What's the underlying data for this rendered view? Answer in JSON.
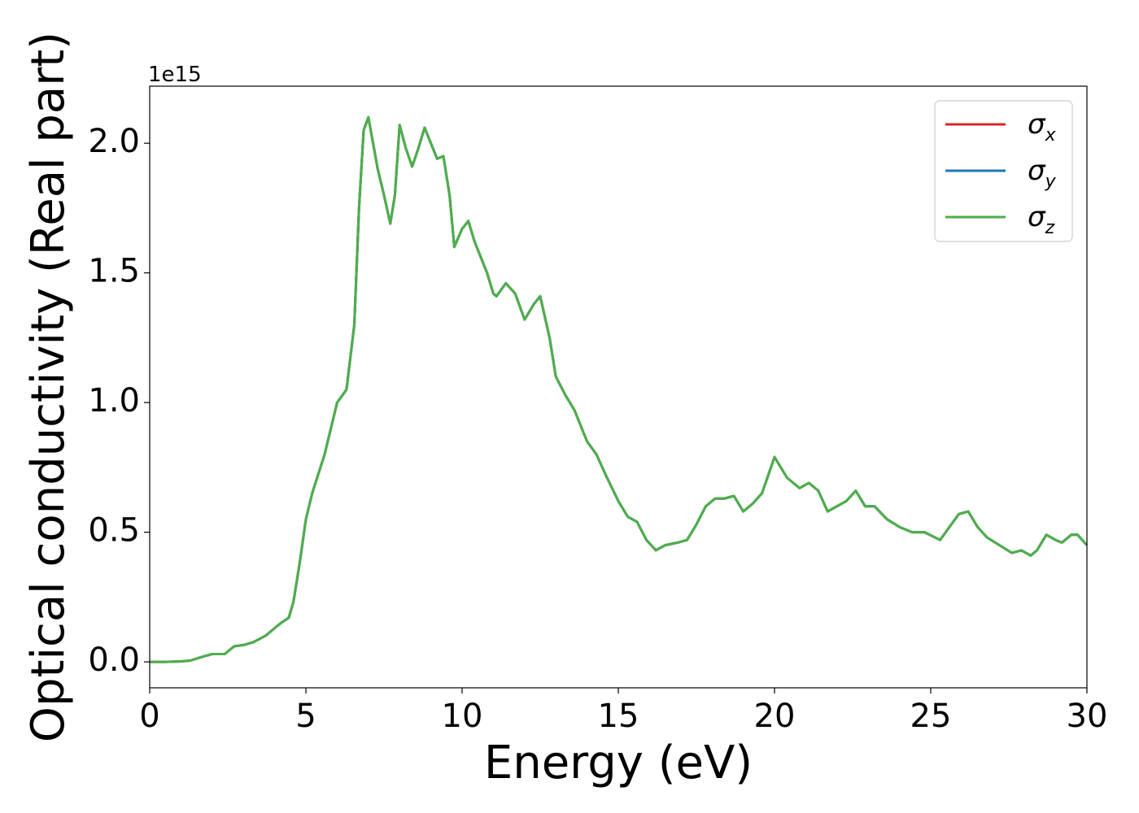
{
  "chart_data": {
    "type": "line",
    "xlabel": "Energy (eV)",
    "ylabel": "Optical conductivity (Real part)",
    "y_offset_label": "1e15",
    "xlim": [
      0,
      30
    ],
    "ylim": [
      -0.1,
      2.22
    ],
    "y_scale_factor": 1000000000000000.0,
    "x_ticks": [
      0,
      5,
      10,
      15,
      20,
      25,
      30
    ],
    "x_tick_labels": [
      "0",
      "5",
      "10",
      "15",
      "20",
      "25",
      "30"
    ],
    "y_ticks": [
      0.0,
      0.5,
      1.0,
      1.5,
      2.0
    ],
    "y_tick_labels": [
      "0.0",
      "0.5",
      "1.0",
      "1.5",
      "2.0"
    ],
    "grid": false,
    "legend_position": "top-right",
    "x": [
      0,
      0.5,
      1.0,
      1.3,
      1.7,
      2.0,
      2.4,
      2.7,
      3.0,
      3.3,
      3.7,
      4.0,
      4.2,
      4.45,
      4.6,
      4.8,
      5.0,
      5.2,
      5.6,
      6.0,
      6.3,
      6.55,
      6.7,
      6.85,
      7.0,
      7.3,
      7.5,
      7.7,
      7.85,
      8.0,
      8.2,
      8.4,
      8.6,
      8.8,
      9.0,
      9.2,
      9.4,
      9.6,
      9.75,
      10.0,
      10.2,
      10.4,
      10.8,
      11.0,
      11.1,
      11.4,
      11.7,
      12.0,
      12.3,
      12.5,
      12.8,
      13.0,
      13.3,
      13.6,
      14.0,
      14.3,
      14.6,
      15.0,
      15.3,
      15.6,
      15.9,
      16.2,
      16.5,
      16.9,
      17.2,
      17.5,
      17.8,
      18.1,
      18.4,
      18.7,
      19.0,
      19.3,
      19.6,
      20.0,
      20.4,
      20.8,
      21.1,
      21.4,
      21.7,
      22.0,
      22.3,
      22.6,
      22.9,
      23.2,
      23.6,
      24.0,
      24.4,
      24.8,
      25.3,
      25.6,
      25.9,
      26.2,
      26.5,
      26.8,
      27.2,
      27.6,
      27.9,
      28.2,
      28.4,
      28.7,
      29.0,
      29.2,
      29.5,
      29.7,
      30.0
    ],
    "series": [
      {
        "name": "σ",
        "subscript": "x",
        "color": "#d62728",
        "values": [
          0.0,
          0.0,
          0.002,
          0.005,
          0.02,
          0.03,
          0.03,
          0.06,
          0.065,
          0.075,
          0.1,
          0.13,
          0.15,
          0.17,
          0.23,
          0.38,
          0.55,
          0.65,
          0.8,
          1.0,
          1.05,
          1.3,
          1.75,
          2.05,
          2.1,
          1.9,
          1.8,
          1.69,
          1.8,
          2.07,
          1.98,
          1.91,
          1.98,
          2.06,
          2.0,
          1.94,
          1.95,
          1.8,
          1.6,
          1.67,
          1.7,
          1.62,
          1.5,
          1.42,
          1.41,
          1.46,
          1.42,
          1.32,
          1.38,
          1.41,
          1.25,
          1.1,
          1.03,
          0.97,
          0.85,
          0.8,
          0.72,
          0.62,
          0.56,
          0.54,
          0.47,
          0.43,
          0.45,
          0.46,
          0.47,
          0.53,
          0.6,
          0.63,
          0.63,
          0.64,
          0.58,
          0.61,
          0.65,
          0.79,
          0.71,
          0.67,
          0.69,
          0.66,
          0.58,
          0.6,
          0.62,
          0.66,
          0.6,
          0.6,
          0.55,
          0.52,
          0.5,
          0.5,
          0.47,
          0.52,
          0.57,
          0.58,
          0.52,
          0.48,
          0.45,
          0.42,
          0.43,
          0.41,
          0.43,
          0.49,
          0.47,
          0.46,
          0.49,
          0.49,
          0.45
        ]
      },
      {
        "name": "σ",
        "subscript": "y",
        "color": "#1f77b4",
        "values": [
          0.0,
          0.0,
          0.002,
          0.005,
          0.02,
          0.03,
          0.03,
          0.06,
          0.065,
          0.075,
          0.1,
          0.13,
          0.15,
          0.17,
          0.23,
          0.38,
          0.55,
          0.65,
          0.8,
          1.0,
          1.05,
          1.3,
          1.75,
          2.05,
          2.1,
          1.9,
          1.8,
          1.69,
          1.8,
          2.07,
          1.98,
          1.91,
          1.98,
          2.06,
          2.0,
          1.94,
          1.95,
          1.8,
          1.6,
          1.67,
          1.7,
          1.62,
          1.5,
          1.42,
          1.41,
          1.46,
          1.42,
          1.32,
          1.38,
          1.41,
          1.25,
          1.1,
          1.03,
          0.97,
          0.85,
          0.8,
          0.72,
          0.62,
          0.56,
          0.54,
          0.47,
          0.43,
          0.45,
          0.46,
          0.47,
          0.53,
          0.6,
          0.63,
          0.63,
          0.64,
          0.58,
          0.61,
          0.65,
          0.79,
          0.71,
          0.67,
          0.69,
          0.66,
          0.58,
          0.6,
          0.62,
          0.66,
          0.6,
          0.6,
          0.55,
          0.52,
          0.5,
          0.5,
          0.47,
          0.52,
          0.57,
          0.58,
          0.52,
          0.48,
          0.45,
          0.42,
          0.43,
          0.41,
          0.43,
          0.49,
          0.47,
          0.46,
          0.49,
          0.49,
          0.45
        ]
      },
      {
        "name": "σ",
        "subscript": "z",
        "color": "#4daf4a",
        "values": [
          0.0,
          0.0,
          0.002,
          0.005,
          0.02,
          0.03,
          0.03,
          0.06,
          0.065,
          0.075,
          0.1,
          0.13,
          0.15,
          0.17,
          0.23,
          0.38,
          0.55,
          0.65,
          0.8,
          1.0,
          1.05,
          1.3,
          1.75,
          2.05,
          2.1,
          1.9,
          1.8,
          1.69,
          1.8,
          2.07,
          1.98,
          1.91,
          1.98,
          2.06,
          2.0,
          1.94,
          1.95,
          1.8,
          1.6,
          1.67,
          1.7,
          1.62,
          1.5,
          1.42,
          1.41,
          1.46,
          1.42,
          1.32,
          1.38,
          1.41,
          1.25,
          1.1,
          1.03,
          0.97,
          0.85,
          0.8,
          0.72,
          0.62,
          0.56,
          0.54,
          0.47,
          0.43,
          0.45,
          0.46,
          0.47,
          0.53,
          0.6,
          0.63,
          0.63,
          0.64,
          0.58,
          0.61,
          0.65,
          0.79,
          0.71,
          0.67,
          0.69,
          0.66,
          0.58,
          0.6,
          0.62,
          0.66,
          0.6,
          0.6,
          0.55,
          0.52,
          0.5,
          0.5,
          0.47,
          0.52,
          0.57,
          0.58,
          0.52,
          0.48,
          0.45,
          0.42,
          0.43,
          0.41,
          0.43,
          0.49,
          0.47,
          0.46,
          0.49,
          0.49,
          0.45
        ]
      }
    ]
  }
}
